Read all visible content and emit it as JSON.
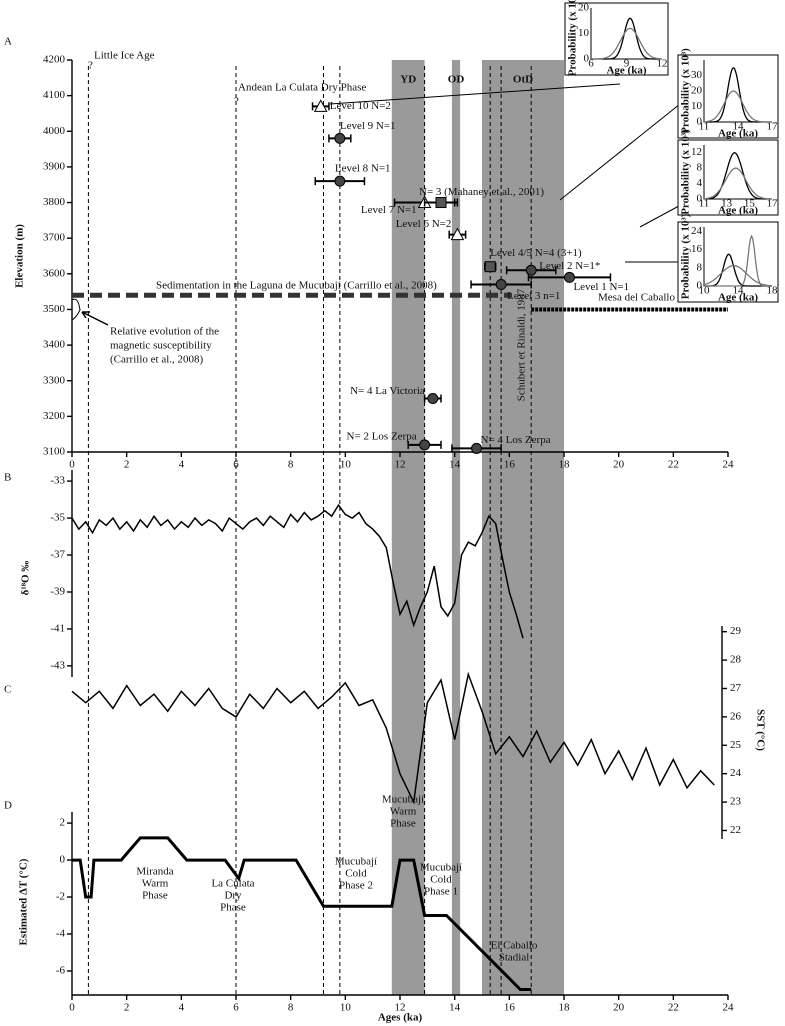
{
  "chart_data": [
    {
      "type": "scatter",
      "panel": "A",
      "ylabel": "Elevation (m)",
      "xlim": [
        0,
        24
      ],
      "xticks": [
        0,
        2,
        4,
        6,
        8,
        10,
        12,
        14,
        16,
        18,
        20,
        22,
        24
      ],
      "ylim": [
        3100,
        4200
      ],
      "yticks": [
        3100,
        3200,
        3300,
        3400,
        3500,
        3600,
        3700,
        3800,
        3900,
        4000,
        4100,
        4200
      ],
      "points": [
        {
          "label": "Level 10 N=2",
          "x": 9.1,
          "y": 4070,
          "xerr": 0.3,
          "marker": "triangle"
        },
        {
          "label": "Level 9 N=1",
          "x": 9.8,
          "y": 3980,
          "xerr": 0.4,
          "marker": "circle"
        },
        {
          "label": "Level 8 N=1",
          "x": 9.8,
          "y": 3860,
          "xerr": 0.9,
          "marker": "circle"
        },
        {
          "label": "Level 7 N=1",
          "x": 12.9,
          "y": 3800,
          "xerr": 1.1,
          "marker": "triangle"
        },
        {
          "label": "N= 3 (Mahaney et al., 2001)",
          "x": 13.5,
          "y": 3800,
          "xerr": 0.6,
          "marker": "square"
        },
        {
          "label": "Level 6 N=2",
          "x": 14.1,
          "y": 3710,
          "xerr": 0.3,
          "marker": "triangle"
        },
        {
          "label": "Level 4/5 N=4 (3+1)",
          "x": 15.3,
          "y": 3620,
          "xerr": 0.2,
          "marker": "square"
        },
        {
          "label": "Level 2 N=1*",
          "x": 16.8,
          "y": 3610,
          "xerr": 0.9,
          "marker": "circle"
        },
        {
          "label": "Level 1 N=1",
          "x": 18.2,
          "y": 3590,
          "xerr": 1.5,
          "marker": "circle"
        },
        {
          "label": "Level 3 n=1",
          "x": 15.7,
          "y": 3570,
          "xerr": 1.1,
          "marker": "circle"
        },
        {
          "label": "N= 4 La Victoria",
          "x": 13.2,
          "y": 3250,
          "xerr": 0.3,
          "marker": "circle"
        },
        {
          "label": "N= 2 Los Zerpa",
          "x": 12.9,
          "y": 3120,
          "xerr": 0.6,
          "marker": "circle"
        },
        {
          "label": "N= 4 Los Zerpa",
          "x": 14.8,
          "y": 3110,
          "xerr": 0.9,
          "marker": "circle"
        }
      ],
      "bands": [
        {
          "label": "YD",
          "start": 11.7,
          "end": 12.9
        },
        {
          "label": "OD",
          "start": 13.9,
          "end": 14.2
        },
        {
          "label": "OtD",
          "start": 15.0,
          "end": 18.0
        }
      ],
      "reference_lines": [
        0.6,
        6,
        9.2,
        9.8,
        12.9,
        15.3,
        15.7,
        16.8
      ],
      "sedimentation": {
        "label": "Sedimentation in the Laguna de Mucubají (Carrillo et al., 2008)",
        "y": 3540,
        "x": [
          0,
          16.1
        ]
      },
      "mesa": {
        "label": "Mesa del Caballo",
        "y": 3500,
        "x": [
          16.8,
          24
        ]
      },
      "annotations": [
        "?",
        "Little Ice Age",
        "?",
        "Andean La Culata Dry Phase",
        "Relative evolution of the",
        "magnetic susceptibility",
        "(Carrillo et al., 2008)",
        "Schubert et Rinaldi, 1987"
      ],
      "insets": [
        {
          "ylabel": "Probability (x 10³)",
          "xlabel": "Age (ka)",
          "xlim": [
            6,
            12
          ],
          "xticks": [
            6,
            9,
            12
          ],
          "ylim": [
            0,
            20
          ],
          "yticks": [
            0,
            10,
            20
          ],
          "curves": [
            {
              "mu": 9.3,
              "sigma": 0.5,
              "peak": 16
            },
            {
              "mu": 9.3,
              "sigma": 0.8,
              "peak": 12
            }
          ]
        },
        {
          "ylabel": "Probability (x 10³)",
          "xlabel": "Age (ka)",
          "xlim": [
            11,
            17
          ],
          "xticks": [
            11,
            14,
            17
          ],
          "ylim": [
            0,
            40
          ],
          "yticks": [
            0,
            10,
            20,
            30
          ],
          "curves": [
            {
              "mu": 13.6,
              "sigma": 0.5,
              "peak": 35
            },
            {
              "mu": 13.6,
              "sigma": 0.8,
              "peak": 20
            }
          ]
        },
        {
          "ylabel": "Probability (x 10³)",
          "xlabel": "Age (ka)",
          "xlim": [
            11,
            17
          ],
          "xticks": [
            11,
            13,
            15,
            17
          ],
          "ylim": [
            0,
            14
          ],
          "yticks": [
            0,
            4,
            8,
            12
          ],
          "curves": [
            {
              "mu": 13.7,
              "sigma": 0.7,
              "peak": 12
            },
            {
              "mu": 13.8,
              "sigma": 0.9,
              "peak": 8
            }
          ]
        },
        {
          "ylabel": "Probability (x 10³)",
          "xlabel": "Age (ka)",
          "xlim": [
            10,
            18
          ],
          "xticks": [
            10,
            14,
            18
          ],
          "ylim": [
            0,
            26
          ],
          "yticks": [
            0,
            8,
            16,
            24
          ],
          "curves": [
            {
              "mu": 12.9,
              "sigma": 0.6,
              "peak": 14
            },
            {
              "mu": 15.6,
              "sigma": 0.4,
              "peak": 22
            },
            {
              "mu": 13.5,
              "sigma": 1.5,
              "peak": 9
            }
          ]
        }
      ]
    },
    {
      "type": "line",
      "panel": "B",
      "ylabel": "δ¹⁸O ‰",
      "ylim": [
        -43.6,
        -32.4
      ],
      "yticks": [
        -33,
        -35,
        -37,
        -39,
        -41,
        -43
      ],
      "x": [
        0,
        0.25,
        0.5,
        0.75,
        1,
        1.25,
        1.5,
        1.75,
        2,
        2.25,
        2.5,
        2.75,
        3,
        3.25,
        3.5,
        3.75,
        4,
        4.25,
        4.5,
        4.75,
        5,
        5.25,
        5.5,
        5.75,
        6,
        6.25,
        6.5,
        6.75,
        7,
        7.25,
        7.5,
        7.75,
        8,
        8.25,
        8.5,
        8.75,
        9,
        9.25,
        9.5,
        9.75,
        10,
        10.25,
        10.5,
        10.75,
        11,
        11.25,
        11.5,
        11.75,
        12,
        12.25,
        12.5,
        12.75,
        13,
        13.25,
        13.5,
        13.75,
        14,
        14.25,
        14.5,
        14.75,
        15,
        15.25,
        15.5,
        15.75,
        16,
        16.25,
        16.5
      ],
      "values": [
        -35.0,
        -35.6,
        -35.2,
        -35.8,
        -35.1,
        -35.4,
        -35.0,
        -35.6,
        -35.2,
        -35.7,
        -35.1,
        -35.5,
        -34.9,
        -35.4,
        -35.1,
        -35.6,
        -35.2,
        -35.5,
        -35.0,
        -35.4,
        -35.1,
        -35.3,
        -35.7,
        -35.0,
        -35.3,
        -35.6,
        -35.2,
        -35.0,
        -35.4,
        -34.9,
        -35.2,
        -35.5,
        -34.8,
        -35.2,
        -34.7,
        -35.1,
        -34.9,
        -34.6,
        -34.9,
        -34.3,
        -34.8,
        -35.0,
        -34.7,
        -35.3,
        -35.6,
        -36.0,
        -36.6,
        -38.5,
        -40.2,
        -39.5,
        -40.8,
        -39.8,
        -39.0,
        -37.6,
        -39.8,
        -40.3,
        -39.6,
        -37.0,
        -36.3,
        -36.5,
        -35.8,
        -34.9,
        -35.3,
        -37.2,
        -39.0,
        -40.2,
        -41.5
      ]
    },
    {
      "type": "line",
      "panel": "C",
      "ylabel": "SST (°C)",
      "axis": "right",
      "ylim": [
        21.7,
        29.2
      ],
      "yticks": [
        22,
        23,
        24,
        25,
        26,
        27,
        28,
        29
      ],
      "x": [
        0,
        0.5,
        1,
        1.5,
        2,
        2.5,
        3,
        3.5,
        4,
        4.5,
        5,
        5.5,
        6,
        6.5,
        7,
        7.5,
        8,
        8.5,
        9,
        9.5,
        10,
        10.5,
        11,
        11.5,
        12,
        12.5,
        13,
        13.5,
        14,
        14.5,
        15,
        15.5,
        16,
        16.5,
        17,
        17.5,
        18,
        18.5,
        19,
        19.5,
        20,
        20.5,
        21,
        21.5,
        22,
        22.5,
        23,
        23.5
      ],
      "values": [
        26.9,
        26.5,
        26.9,
        26.3,
        27.1,
        26.4,
        26.8,
        26.2,
        26.9,
        26.4,
        27.0,
        26.3,
        26.0,
        26.8,
        26.3,
        27.0,
        26.5,
        26.9,
        26.3,
        26.7,
        27.2,
        26.4,
        26.6,
        25.6,
        24.0,
        23.0,
        26.5,
        27.3,
        25.2,
        27.5,
        26.2,
        24.7,
        25.3,
        24.6,
        25.5,
        24.4,
        25.1,
        24.3,
        25.2,
        24.0,
        24.8,
        23.8,
        24.9,
        23.6,
        24.5,
        23.5,
        24.1,
        23.6
      ]
    },
    {
      "type": "line",
      "panel": "D",
      "ylabel": "Estimated ΔT (°C)",
      "xlabel": "Ages (ka)",
      "xlim": [
        0,
        24
      ],
      "xticks": [
        0,
        2,
        4,
        6,
        8,
        10,
        12,
        14,
        16,
        18,
        20,
        22,
        24
      ],
      "ylim": [
        -7.3,
        2.6
      ],
      "yticks": [
        2,
        0,
        -2,
        -4,
        -6
      ],
      "x": [
        0,
        0.3,
        0.5,
        0.7,
        0.8,
        1.8,
        2.5,
        3.5,
        4.2,
        5.6,
        6.1,
        6.3,
        8.2,
        9.2,
        11.7,
        12,
        12.5,
        12.9,
        13.7,
        16.4,
        16.8
      ],
      "values": [
        0,
        0,
        -2,
        -2,
        0,
        0,
        1.2,
        1.2,
        0,
        0,
        -1,
        0,
        0,
        -2.5,
        -2.5,
        0,
        0,
        -3,
        -3,
        -7,
        -7
      ],
      "annotations": [
        [
          "Miranda",
          "Warm",
          "Phase"
        ],
        [
          "La Culata",
          "Dry",
          "Phase"
        ],
        [
          "Mucubají",
          "Cold",
          "Phase 2"
        ],
        [
          "Mucubají",
          "Warm",
          "Phase"
        ],
        [
          "Mucubají",
          "Cold",
          "Phase 1"
        ],
        [
          "El Caballo",
          "Stadial"
        ]
      ]
    }
  ]
}
